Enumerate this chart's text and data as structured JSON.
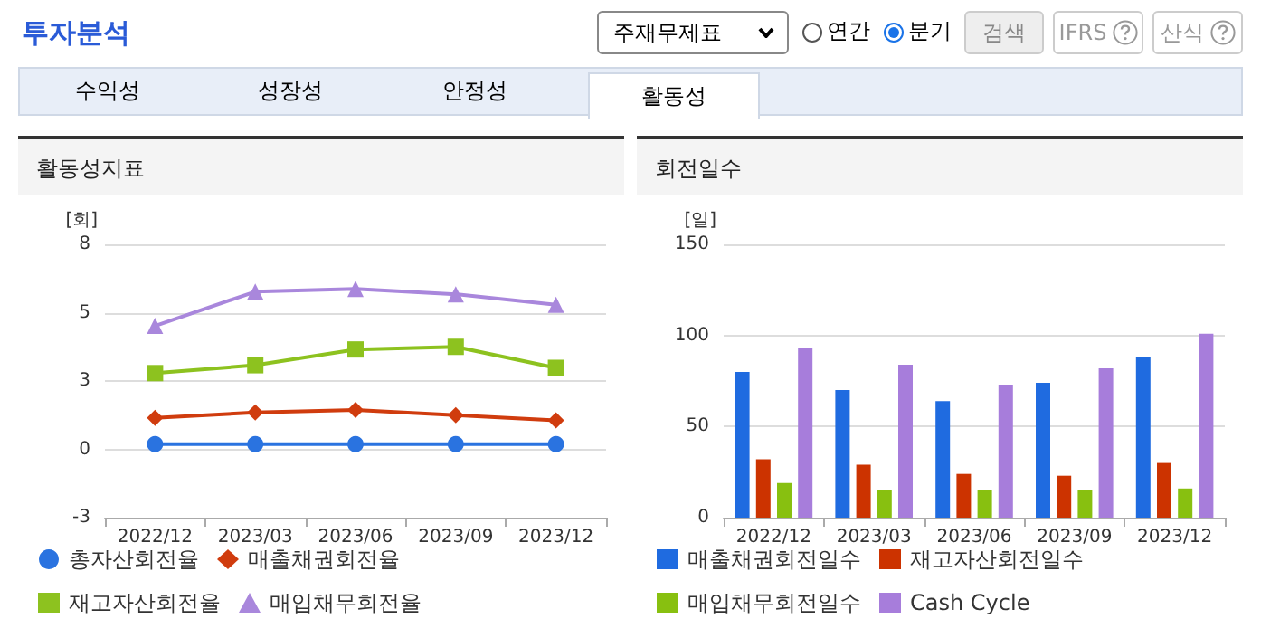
{
  "chart_data": [
    {
      "type": "line",
      "title": "활동성지표",
      "ylabel": "[회]",
      "annotations": [
        "투자분석",
        "주재무제표",
        "연간",
        "분기",
        "검색",
        "IFRS",
        "산식",
        "수익성",
        "성장성",
        "안정성",
        "활동성"
      ],
      "categories": [
        "2022/12",
        "2023/03",
        "2023/06",
        "2023/09",
        "2023/12"
      ],
      "series": [
        {
          "name": "총자산회전율",
          "color": "#2a73e0",
          "marker": "circle",
          "values": [
            0.2,
            0.2,
            0.2,
            0.2,
            0.2
          ]
        },
        {
          "name": "매출채권회전율",
          "color": "#d03c0e",
          "marker": "diamond",
          "values": [
            1.2,
            1.4,
            1.5,
            1.3,
            1.1
          ]
        },
        {
          "name": "재고자산회전율",
          "color": "#8dc21f",
          "marker": "square",
          "values": [
            2.9,
            3.2,
            3.8,
            3.9,
            3.1
          ]
        },
        {
          "name": "매입채무회전율",
          "color": "#a987dc",
          "marker": "triangle",
          "values": [
            4.7,
            6.0,
            6.1,
            5.9,
            5.5
          ]
        }
      ],
      "ylim": [
        -2.6,
        7.8
      ],
      "yticks": [
        {
          "value": -2.6,
          "label": "-3"
        },
        {
          "value": 0,
          "label": "0"
        },
        {
          "value": 2.6,
          "label": "3"
        },
        {
          "value": 5.2,
          "label": "5"
        },
        {
          "value": 7.8,
          "label": "8"
        }
      ],
      "grid": "y",
      "legend": "bottom"
    },
    {
      "type": "bar",
      "title": "회전일수",
      "ylabel": "[일]",
      "categories": [
        "2022/12",
        "2023/03",
        "2023/06",
        "2023/09",
        "2023/12"
      ],
      "series": [
        {
          "name": "매출채권회전일수",
          "color": "#1f6be0",
          "values": [
            80,
            70,
            64,
            74,
            88
          ]
        },
        {
          "name": "재고자산회전일수",
          "color": "#cc3300",
          "values": [
            32,
            29,
            24,
            23,
            30
          ]
        },
        {
          "name": "매입채무회전일수",
          "color": "#88c010",
          "values": [
            19,
            15,
            15,
            15,
            16
          ]
        },
        {
          "name": "Cash Cycle",
          "color": "#a77ddb",
          "values": [
            93,
            84,
            73,
            82,
            101
          ]
        }
      ],
      "ylim": [
        0,
        150
      ],
      "yticks": [
        0,
        50,
        100,
        150
      ],
      "grid": "y",
      "legend": "bottom"
    }
  ]
}
